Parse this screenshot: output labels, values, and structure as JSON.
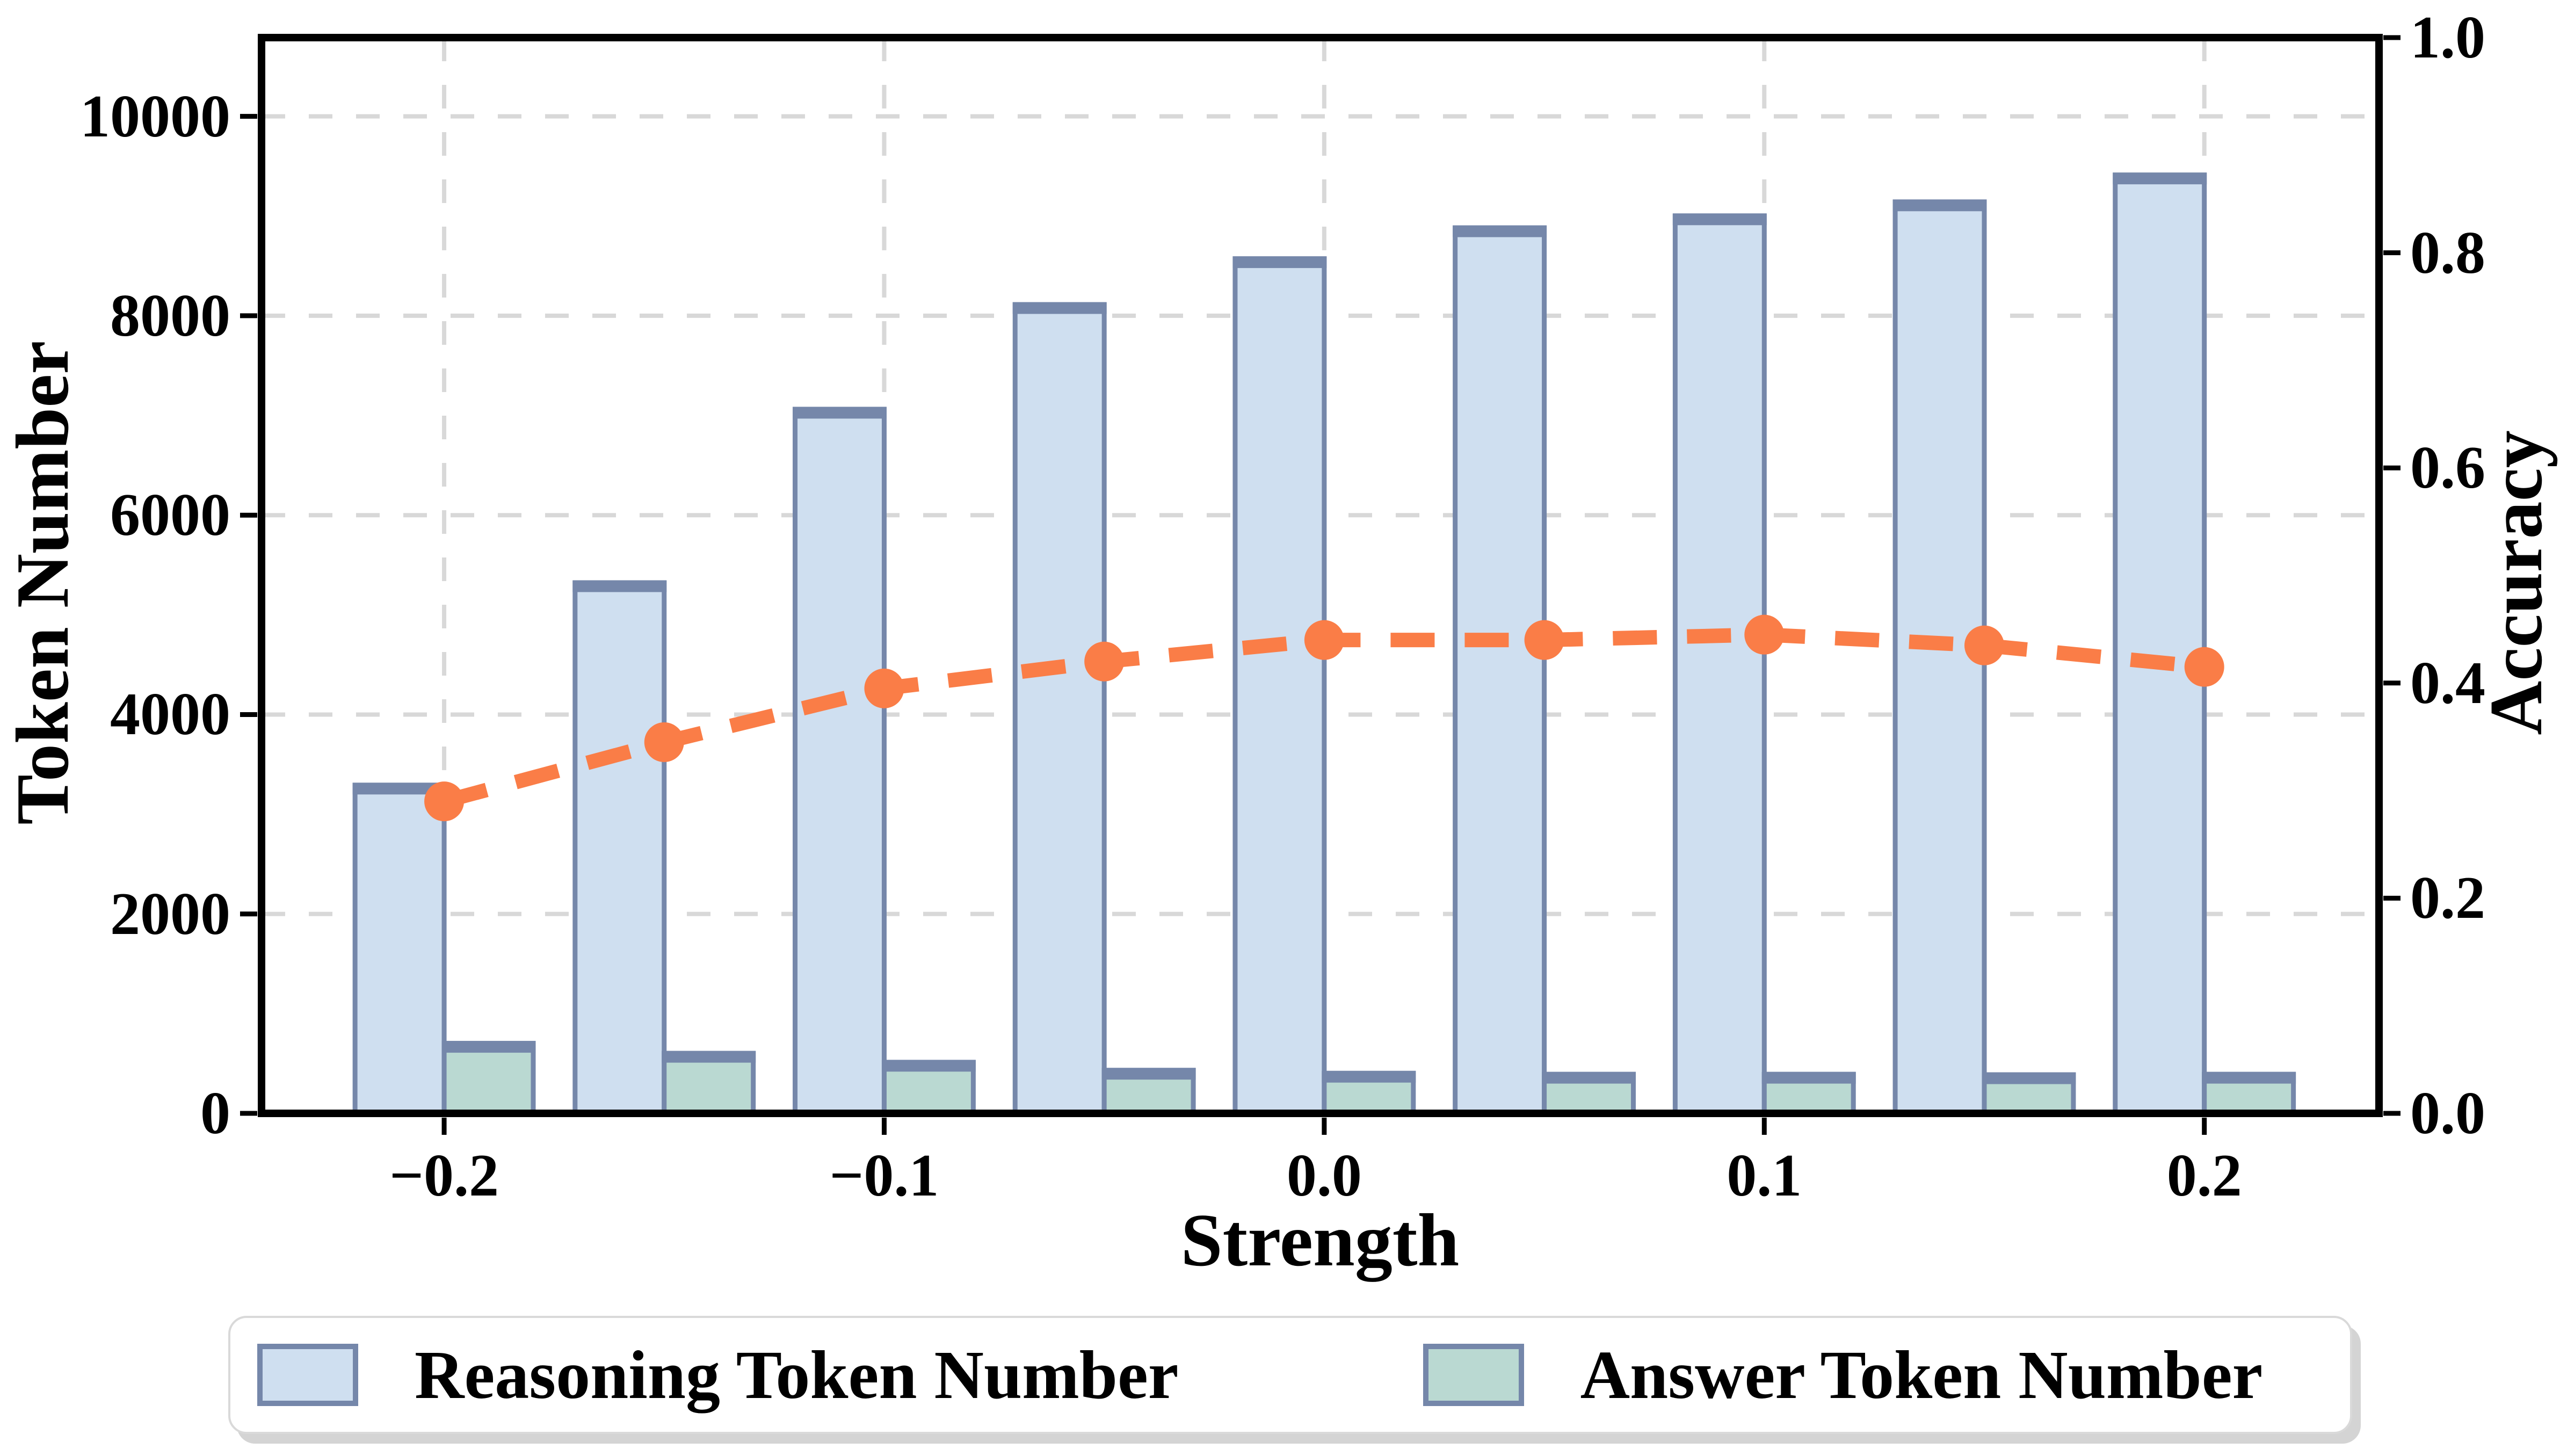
{
  "axes": {
    "x_label": "Strength",
    "left_label": "Token Number",
    "right_label": "Accuracy"
  },
  "legend": {
    "items": [
      {
        "label": "Reasoning Token Number",
        "fill": "#cfdff0",
        "edge": "#7587aa"
      },
      {
        "label": "Answer Token Number",
        "fill": "#bad9d2",
        "edge": "#7587aa"
      }
    ]
  },
  "colors": {
    "reasoning_bar_fill": "#cfdff0",
    "answer_bar_fill": "#bad9d2",
    "bar_edge": "#7587aa",
    "accuracy_line": "#fa7d47",
    "grid": "#d8d8d8",
    "spine": "#000000",
    "legend_border": "#d9d9d9"
  },
  "chart_data": {
    "type": "bar",
    "title": "",
    "xlabel": "Strength",
    "ylabel_left": "Token Number",
    "ylabel_right": "Accuracy",
    "x": [
      -0.2,
      -0.15,
      -0.1,
      -0.05,
      0.0,
      0.05,
      0.1,
      0.15,
      0.2
    ],
    "series": [
      {
        "name": "Reasoning Token Number",
        "type": "bar",
        "axis": "left",
        "color": "#cfdff0",
        "edge": "#7587aa",
        "values": [
          3290,
          5320,
          7060,
          8110,
          8570,
          8880,
          9000,
          9140,
          9410
        ]
      },
      {
        "name": "Answer Token Number",
        "type": "bar",
        "axis": "left",
        "color": "#bad9d2",
        "edge": "#7587aa",
        "values": [
          700,
          600,
          510,
          430,
          400,
          390,
          390,
          385,
          390
        ]
      },
      {
        "name": "Accuracy",
        "type": "line",
        "axis": "right",
        "color": "#fa7d47",
        "marker": "circle",
        "values": [
          0.29,
          0.345,
          0.395,
          0.42,
          0.44,
          0.44,
          0.445,
          0.435,
          0.415
        ]
      }
    ],
    "xticks": {
      "values": [
        -0.2,
        -0.1,
        0.0,
        0.1,
        0.2
      ],
      "labels": [
        "−0.2",
        "−0.1",
        "0.0",
        "0.1",
        "0.2"
      ]
    },
    "yticks_left": {
      "values": [
        0,
        2000,
        4000,
        6000,
        8000,
        10000
      ],
      "labels": [
        "0",
        "2000",
        "4000",
        "6000",
        "8000",
        "10000"
      ]
    },
    "yticks_right": {
      "values": [
        0.0,
        0.2,
        0.4,
        0.6,
        0.8,
        1.0
      ],
      "labels": [
        "0.0",
        "0.2",
        "0.4",
        "0.6",
        "0.8",
        "1.0"
      ]
    },
    "xlim": [
      -0.2415,
      0.2397
    ],
    "ylim_left": [
      0,
      10790
    ],
    "ylim_right": [
      0,
      1.0
    ],
    "bar_width_units": 0.02025,
    "grid": true,
    "grid_style": "dashed",
    "legend_position": "bottom"
  }
}
